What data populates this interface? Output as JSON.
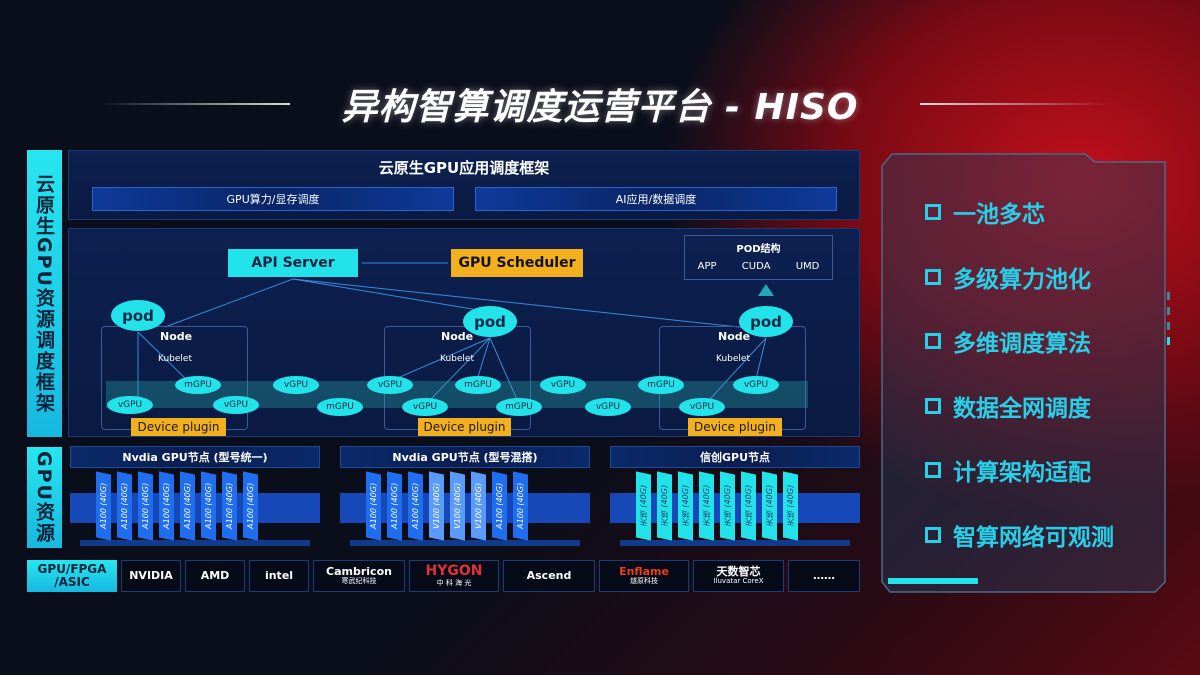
{
  "title": "异构智算调度运营平台 - HISO",
  "side_labels": {
    "top": "云原生GPU资源调度框架",
    "bottom": "GPU资源",
    "chips": "GPU/FPGA /ASIC"
  },
  "framework": {
    "title": "云原生GPU应用调度框架",
    "bars": [
      "GPU算力/显存调度",
      "AI应用/数据调度"
    ]
  },
  "scheduler": {
    "api_server": "API Server",
    "gpu_scheduler": "GPU Scheduler",
    "pod_structure": {
      "title": "POD结构",
      "items": [
        "APP",
        "CUDA",
        "UMD"
      ]
    },
    "nodes": [
      {
        "pod": "pod",
        "node": "Node",
        "kubelet": "Kubelet",
        "plugin": "Device plugin"
      },
      {
        "pod": "pod",
        "node": "Node",
        "kubelet": "Kubelet",
        "plugin": "Device plugin"
      },
      {
        "pod": "pod",
        "node": "Node",
        "kubelet": "Kubelet",
        "plugin": "Device plugin"
      }
    ],
    "units": [
      "vGPU",
      "mGPU",
      "vGPU",
      "vGPU",
      "mGPU",
      "vGPU",
      "vGPU",
      "mGPU",
      "mGPU",
      "vGPU",
      "vGPU",
      "mGPU",
      "vGPU",
      "vGPU"
    ]
  },
  "gpu_nodes": [
    {
      "title": "Nvdia GPU节点 (型号统一)",
      "cards": [
        "A100 (40G)",
        "A100 (40G)",
        "A100 (40G)",
        "A100 (40G)",
        "A100 (40G)",
        "A100 (40G)",
        "A100 (40G)",
        "A100 (40G)"
      ],
      "color": "#1f6ef0"
    },
    {
      "title": "Nvdia GPU节点 (型号混搭)",
      "cards": [
        "A100 (40G)",
        "A100 (40G)",
        "A100 (40G)",
        "V100 (40G)",
        "V100 (40G)",
        "V100 (40G)",
        "A100 (40G)",
        "A100 (40G)"
      ],
      "color": "#1f6ef0"
    },
    {
      "title": "信创GPU节点",
      "cards": [
        "天垓 (40G)",
        "天垓 (40G)",
        "天垓 (40G)",
        "天垓 (40G)",
        "天垓 (40G)",
        "天垓 (40G)",
        "天垓 (40G)",
        "天垓 (40G)"
      ],
      "color": "#22e3ea"
    }
  ],
  "vendors": [
    {
      "name": "NVIDIA"
    },
    {
      "name": "AMD"
    },
    {
      "name": "intel"
    },
    {
      "name": "Cambricon",
      "sub": "寒武纪科技"
    },
    {
      "name": "HYGON",
      "sub": "中 科 海 光"
    },
    {
      "name": "Ascend"
    },
    {
      "name": "Enflame",
      "sub": "燧原科技"
    },
    {
      "name": "天数智芯",
      "sub": "Iluvatar CoreX"
    },
    {
      "name": "……"
    }
  ],
  "features": [
    "一池多芯",
    "多级算力池化",
    "多维调度算法",
    "数据全网调度",
    "计算架构适配",
    "智算网络可观测"
  ],
  "colors": {
    "cyan": "#22e3ea",
    "orange": "#f2b01e",
    "blue": "#1f6ef0"
  }
}
